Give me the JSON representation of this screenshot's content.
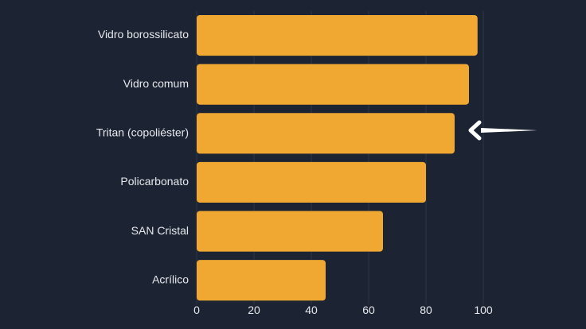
{
  "chart_data": {
    "type": "barh",
    "categories": [
      "Vidro borossilicato",
      "Vidro comum",
      "Tritan (copoliéster)",
      "Policarbonato",
      "SAN Cristal",
      "Acrílico"
    ],
    "values": [
      98,
      95,
      90,
      80,
      65,
      45
    ],
    "color": "#f0a832",
    "xlim": [
      0,
      120
    ],
    "xticks": [
      0,
      20,
      40,
      60,
      80,
      100
    ],
    "grid": true
  }
}
